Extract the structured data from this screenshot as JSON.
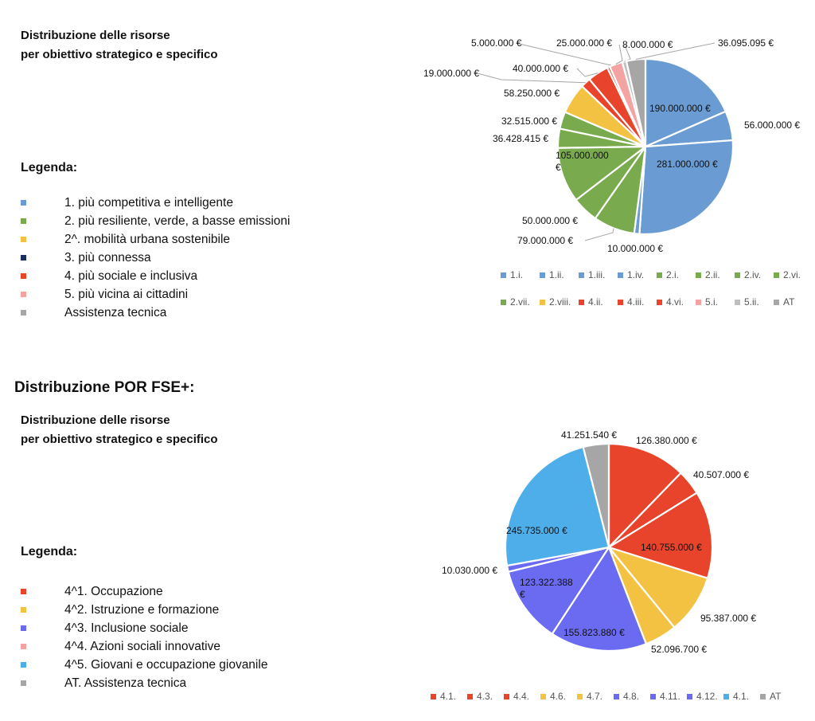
{
  "fesr": {
    "subtitle_line1": "Distribuzione delle risorse",
    "subtitle_line2": "per obiettivo strategico e specifico",
    "legend_title": "Legenda:",
    "legend": [
      {
        "label": "1. più competitiva e intelligente",
        "color": "#6a9bd2"
      },
      {
        "label": "2. più resiliente, verde, a basse emissioni",
        "color": "#79aa4d"
      },
      {
        "label": "2^. mobilità urbana sostenibile",
        "color": "#f4c242"
      },
      {
        "label": "3. più connessa",
        "color": "#1c2f5e"
      },
      {
        "label": "4. più sociale e inclusiva",
        "color": "#e8432b"
      },
      {
        "label": "5. più vicina ai cittadini",
        "color": "#f4a3a3"
      },
      {
        "label": "Assistenza tecnica",
        "color": "#a6a6a6"
      }
    ]
  },
  "fse": {
    "section_title": "Distribuzione POR FSE+:",
    "subtitle_line1": "Distribuzione delle risorse",
    "subtitle_line2": "per obiettivo strategico e specifico",
    "legend_title": "Legenda:",
    "legend": [
      {
        "label": "4^1. Occupazione",
        "color": "#e8432b"
      },
      {
        "label": "4^2. Istruzione e formazione",
        "color": "#f4c242"
      },
      {
        "label": "4^3. Inclusione sociale",
        "color": "#6b6bf2"
      },
      {
        "label": "4^4. Azioni sociali innovative",
        "color": "#f4a3a3"
      },
      {
        "label": "4^5. Giovani e occupazione giovanile",
        "color": "#4daeea"
      },
      {
        "label": "AT. Assistenza tecnica",
        "color": "#a6a6a6"
      }
    ]
  },
  "chart_data": [
    {
      "type": "pie",
      "series": [
        {
          "category": "1.i.",
          "value": 190000000,
          "label": "190.000.000 €",
          "color": "#6a9bd2"
        },
        {
          "category": "1.ii.",
          "value": 56000000,
          "label": "56.000.000 €",
          "color": "#6a9bd2"
        },
        {
          "category": "1.iii.",
          "value": 281000000,
          "label": "281.000.000 €",
          "color": "#6a9bd2"
        },
        {
          "category": "1.iv.",
          "value": 10000000,
          "label": "10.000.000 €",
          "color": "#6a9bd2"
        },
        {
          "category": "2.i.",
          "value": 79000000,
          "label": "79.000.000 €",
          "color": "#79aa4d"
        },
        {
          "category": "2.ii.",
          "value": 50000000,
          "label": "50.000.000 €",
          "color": "#79aa4d"
        },
        {
          "category": "2.iv.",
          "value": 105000000,
          "label": "105.000.000 €",
          "color": "#79aa4d"
        },
        {
          "category": "2.vi.",
          "value": 36428415,
          "label": "36.428.415 €",
          "color": "#79aa4d"
        },
        {
          "category": "2.vii.",
          "value": 32515000,
          "label": "32.515.000 €",
          "color": "#79aa4d"
        },
        {
          "category": "2.viii.",
          "value": 58250000,
          "label": "58.250.000 €",
          "color": "#f4c242"
        },
        {
          "category": "4.ii.",
          "value": 19000000,
          "label": "19.000.000 €",
          "color": "#e8432b"
        },
        {
          "category": "4.iii.",
          "value": 40000000,
          "label": "40.000.000 €",
          "color": "#e8432b"
        },
        {
          "category": "4.vi.",
          "value": 5000000,
          "label": "5.000.000 €",
          "color": "#e8432b"
        },
        {
          "category": "5.i.",
          "value": 25000000,
          "label": "25.000.000 €",
          "color": "#f4a3a3"
        },
        {
          "category": "5.ii.",
          "value": 8000000,
          "label": "8.000.000 €",
          "color": "#bfbfbf"
        },
        {
          "category": "AT",
          "value": 36095095,
          "label": "36.095.095 €",
          "color": "#a6a6a6"
        }
      ]
    },
    {
      "type": "pie",
      "series": [
        {
          "category": "4.1.",
          "value": 126380000,
          "label": "126.380.000 €",
          "color": "#e8432b"
        },
        {
          "category": "4.3.",
          "value": 40507000,
          "label": "40.507.000 €",
          "color": "#e8432b"
        },
        {
          "category": "4.4.",
          "value": 140755000,
          "label": "140.755.000 €",
          "color": "#e8432b"
        },
        {
          "category": "4.6.",
          "value": 95387000,
          "label": "95.387.000 €",
          "color": "#f4c242"
        },
        {
          "category": "4.7.",
          "value": 52096700,
          "label": "52.096.700 €",
          "color": "#f4c242"
        },
        {
          "category": "4.8.",
          "value": 155823880,
          "label": "155.823.880 €",
          "color": "#6b6bf2"
        },
        {
          "category": "4.11.",
          "value": 123322388,
          "label": "123.322.388 €",
          "color": "#6b6bf2"
        },
        {
          "category": "4.12.",
          "value": 10030000,
          "label": "10.030.000 €",
          "color": "#6b6bf2"
        },
        {
          "category": "4.1.",
          "value": 245735000,
          "label": "245.735.000 €",
          "color": "#4daeea"
        },
        {
          "category": "AT",
          "value": 41251540,
          "label": "41.251.540 €",
          "color": "#a6a6a6"
        }
      ]
    }
  ]
}
